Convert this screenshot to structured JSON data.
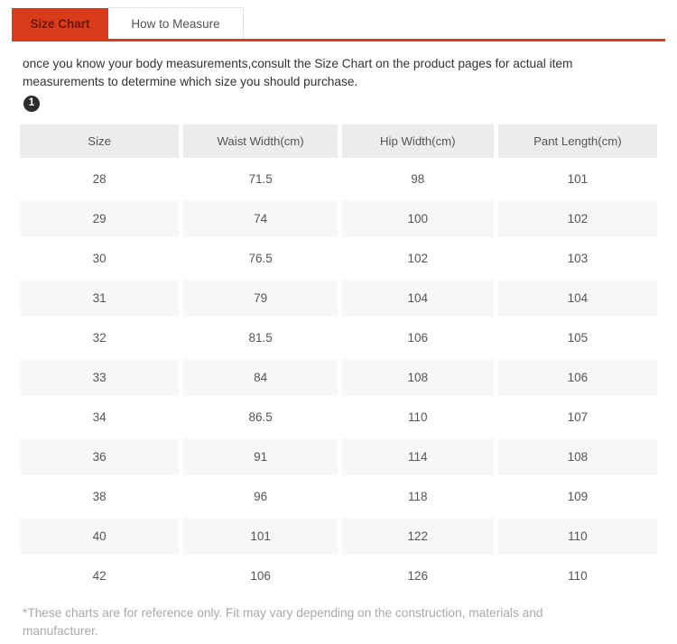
{
  "tabs": [
    {
      "label": "Size Chart",
      "active": true
    },
    {
      "label": "How to Measure",
      "active": false
    }
  ],
  "description": "once you know your body measurements,consult the Size Chart on the product pages for actual item measurements to determine which size you should purchase.",
  "badge": "1",
  "table": {
    "headers": [
      "Size",
      "Waist Width(cm)",
      "Hip Width(cm)",
      "Pant Length(cm)"
    ],
    "rows": [
      [
        "28",
        "71.5",
        "98",
        "101"
      ],
      [
        "29",
        "74",
        "100",
        "102"
      ],
      [
        "30",
        "76.5",
        "102",
        "103"
      ],
      [
        "31",
        "79",
        "104",
        "104"
      ],
      [
        "32",
        "81.5",
        "106",
        "105"
      ],
      [
        "33",
        "84",
        "108",
        "106"
      ],
      [
        "34",
        "86.5",
        "110",
        "107"
      ],
      [
        "36",
        "91",
        "114",
        "108"
      ],
      [
        "38",
        "96",
        "118",
        "109"
      ],
      [
        "40",
        "101",
        "122",
        "110"
      ],
      [
        "42",
        "106",
        "126",
        "110"
      ]
    ]
  },
  "footnote": "*These charts are for reference only. Fit may vary depending on the construction, materials and manufacturer.",
  "colors": {
    "accent": "#d93c1b",
    "active_tab_text": "#6e150a",
    "header_bg": "#ececec",
    "alt_row_bg": "#f7f7f7",
    "footnote_text": "#a9a9a9"
  }
}
